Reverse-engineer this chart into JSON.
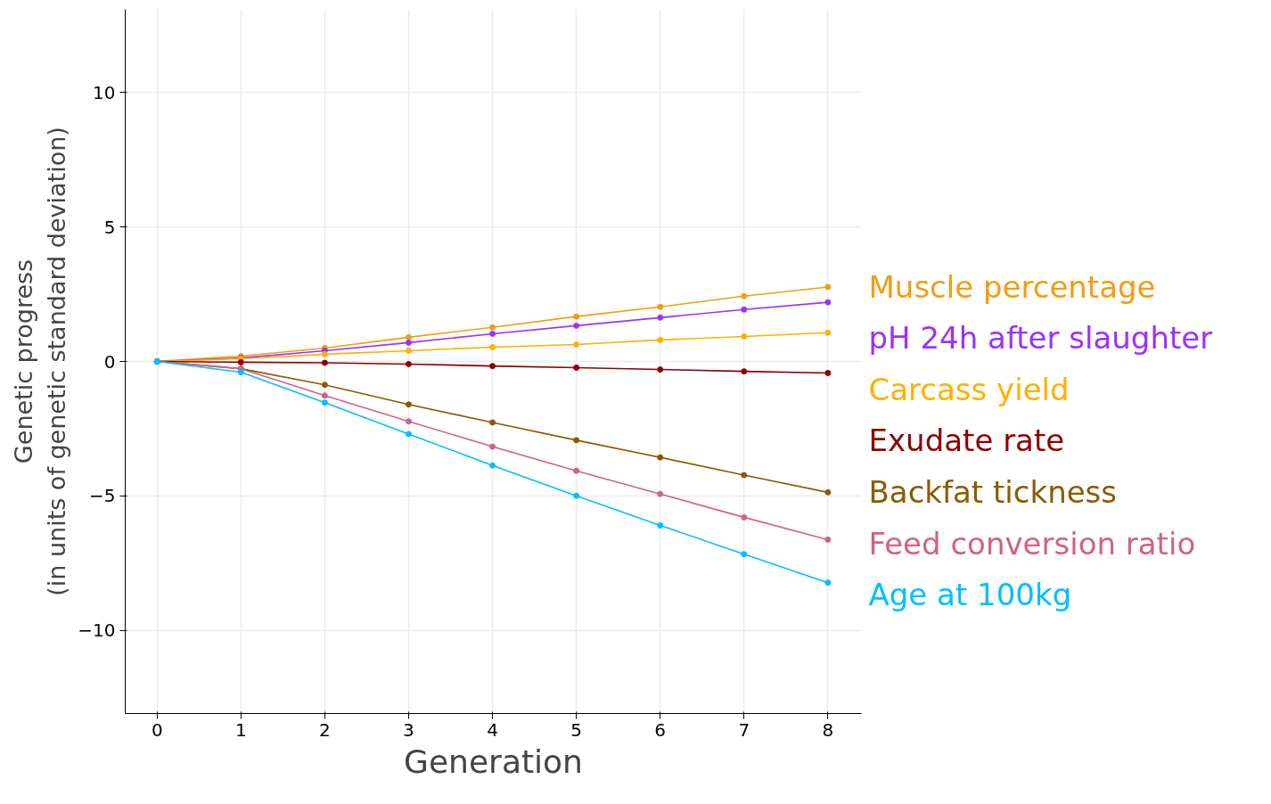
{
  "chart_data": {
    "type": "line",
    "xlabel": "Generation",
    "ylabel": "Genetic progress\n(in units of genetic standard deviation)",
    "x": [
      0,
      1,
      2,
      3,
      4,
      5,
      6,
      7,
      8
    ],
    "series": [
      {
        "name": "Muscle percentage",
        "color": "#f39c12",
        "values": [
          0,
          0.2,
          0.5,
          0.9,
          1.27,
          1.67,
          2.03,
          2.43,
          2.77
        ]
      },
      {
        "name": "pH 24h after slaughter",
        "color": "#9b30ff",
        "values": [
          0,
          0.13,
          0.4,
          0.7,
          1.03,
          1.33,
          1.63,
          1.93,
          2.2
        ]
      },
      {
        "name": "Carcass yield",
        "color": "#ffb000",
        "values": [
          0,
          0.1,
          0.27,
          0.4,
          0.53,
          0.63,
          0.8,
          0.93,
          1.07
        ]
      },
      {
        "name": "Exudate rate",
        "color": "#8b0000",
        "values": [
          0,
          -0.03,
          -0.05,
          -0.1,
          -0.17,
          -0.23,
          -0.3,
          -0.37,
          -0.43
        ]
      },
      {
        "name": "Backfat tickness",
        "color": "#8b5a00",
        "values": [
          0,
          -0.27,
          -0.87,
          -1.6,
          -2.27,
          -2.93,
          -3.57,
          -4.23,
          -4.87
        ]
      },
      {
        "name": "Feed conversion ratio",
        "color": "#d0608a",
        "values": [
          0,
          -0.27,
          -1.27,
          -2.23,
          -3.17,
          -4.07,
          -4.93,
          -5.8,
          -6.63
        ]
      },
      {
        "name": "Age at 100kg",
        "color": "#00bfff",
        "values": [
          0,
          -0.4,
          -1.53,
          -2.7,
          -3.87,
          -5.0,
          -6.1,
          -7.17,
          -8.23
        ]
      }
    ],
    "xlim": [
      -0.38,
      8.4
    ],
    "xticks": [
      0,
      1,
      2,
      3,
      4,
      5,
      6,
      7,
      8
    ],
    "ylim": [
      -13.1,
      13.1
    ],
    "yticks": [
      -10,
      -5,
      0,
      5,
      10
    ],
    "grid": true,
    "marker": "circle",
    "line_style": "solid"
  }
}
